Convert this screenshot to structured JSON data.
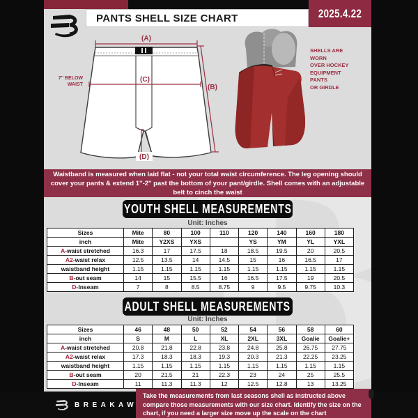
{
  "header": {
    "title": "PANTS SHELL SIZE CHART",
    "date": "2025.4.22"
  },
  "diagram": {
    "label_a": "(A)",
    "label_b": "(B)",
    "label_c": "(C)",
    "label_d": "(D)",
    "below_waist_note": "7'' BELOW\nWAIST"
  },
  "photo": {
    "caption": "SHELLS ARE WORN\nOVER HOCKEY\nEQUIPMENT PANTS\nOR GIRDLE"
  },
  "banner_text": "Waistband is measured when laid flat - not your total waist circumference. The leg opening should cover your pants & extend 1''-2'' past the bottom of your pant/girdle. Shell comes with an adjustable belt to cinch the waist",
  "youth": {
    "heading": "YOUTH SHELL MEASUREMENTS",
    "unit": "Unit: Inches",
    "table": {
      "header_rows": [
        {
          "label": "Sizes",
          "cells": [
            "Mite",
            "80",
            "100",
            "110",
            "120",
            "140",
            "160",
            "180"
          ]
        },
        {
          "label": "inch",
          "cells": [
            "Mite",
            "Y2XS",
            "YXS",
            "",
            "YS",
            "YM",
            "YL",
            "YXL"
          ]
        }
      ],
      "rows": [
        {
          "prefix": "A",
          "label": "-waist stretched",
          "cells": [
            "16.3",
            "17",
            "17.5",
            "18",
            "18.5",
            "19.5",
            "20",
            "20.5"
          ]
        },
        {
          "prefix": "A2",
          "label": "-waist relax",
          "cells": [
            "12.5",
            "13.5",
            "14",
            "14.5",
            "15",
            "16",
            "16.5",
            "17"
          ]
        },
        {
          "prefix": "",
          "label": "waistband height",
          "cells": [
            "1.15",
            "1.15",
            "1.15",
            "1.15",
            "1.15",
            "1.15",
            "1.15",
            "1.15"
          ]
        },
        {
          "prefix": "B",
          "label": "-out seam",
          "cells": [
            "14",
            "15",
            "15.5",
            "16",
            "16.5",
            "17.5",
            "19",
            "20.5"
          ]
        },
        {
          "prefix": "D",
          "label": "-Inseam",
          "cells": [
            "7",
            "8",
            "8.5",
            "8.75",
            "9",
            "9.5",
            "9.75",
            "10.3"
          ]
        }
      ]
    }
  },
  "adult": {
    "heading": "ADULT SHELL MEASUREMENTS",
    "unit": "Unit: Inches",
    "table": {
      "header_rows": [
        {
          "label": "Sizes",
          "cells": [
            "46",
            "48",
            "50",
            "52",
            "54",
            "56",
            "58",
            "60"
          ]
        },
        {
          "label": "inch",
          "cells": [
            "S",
            "M",
            "L",
            "XL",
            "2XL",
            "3XL",
            "Goalie",
            "Goalie+"
          ]
        }
      ],
      "rows": [
        {
          "prefix": "A",
          "label": "-waist stretched",
          "cells": [
            "20.8",
            "21.8",
            "22.8",
            "23.8",
            "24.8",
            "25.8",
            "26.75",
            "27.75"
          ]
        },
        {
          "prefix": "A2",
          "label": "-waist relax",
          "cells": [
            "17.3",
            "18.3",
            "18.3",
            "19.3",
            "20.3",
            "21.3",
            "22.25",
            "23.25"
          ]
        },
        {
          "prefix": "",
          "label": "waistband height",
          "cells": [
            "1.15",
            "1.15",
            "1.15",
            "1.15",
            "1.15",
            "1.15",
            "1.15",
            "1.15"
          ]
        },
        {
          "prefix": "B",
          "label": "-out seam",
          "cells": [
            "20",
            "21.5",
            "21",
            "22.3",
            "23",
            "24",
            "25",
            "25.5"
          ]
        },
        {
          "prefix": "D",
          "label": "-Inseam",
          "cells": [
            "11",
            "11.3",
            "11.3",
            "12",
            "12.5",
            "12.8",
            "13",
            "13.25"
          ]
        }
      ]
    }
  },
  "footer": {
    "brand": "BREAKAWAY",
    "note": "Take the measurements from last seasons shell as instructed above compare those measurements  with our size chart. Identify the size on the chart, if you need a larger size move up the scale on the chart"
  },
  "watermark_letter": "B",
  "colors": {
    "maroon_banner": "#8e3048",
    "maroon_date": "#8e2b42",
    "maroon_strip": "#872639",
    "diagram_accent": "#9b2d42",
    "prefix_red": "#a42038",
    "shell_red": "#a32f2e",
    "doc_background": "#dcdcdc",
    "black": "#0d0d0d"
  }
}
